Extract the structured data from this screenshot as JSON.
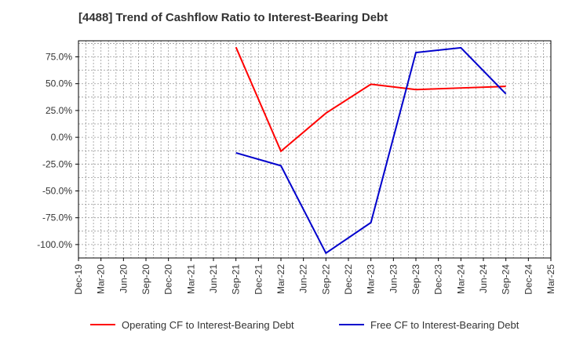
{
  "chart_data": {
    "type": "line",
    "title": "[4488]  Trend of Cashflow Ratio to Interest-Bearing Debt",
    "xlabel": "",
    "ylabel": "",
    "categories": [
      "Dec-19",
      "Mar-20",
      "Jun-20",
      "Sep-20",
      "Dec-20",
      "Mar-21",
      "Jun-21",
      "Sep-21",
      "Dec-21",
      "Mar-22",
      "Jun-22",
      "Sep-22",
      "Dec-22",
      "Mar-23",
      "Jun-23",
      "Sep-23",
      "Dec-23",
      "Mar-24",
      "Jun-24",
      "Sep-24",
      "Dec-24",
      "Mar-25"
    ],
    "ylim": [
      -112.5,
      90
    ],
    "yticks": [
      75,
      50,
      25,
      0,
      -25,
      -50,
      -75,
      -100
    ],
    "ytick_labels": [
      "75.0%",
      "50.0%",
      "25.0%",
      "0.0%",
      "-25.0%",
      "-50.0%",
      "-75.0%",
      "-100.0%"
    ],
    "grid": true,
    "legend_position": "bottom",
    "series": [
      {
        "name": "Operating CF to Interest-Bearing Debt",
        "color": "#ff0000",
        "points": [
          {
            "x": "Sep-21",
            "y": 84.0
          },
          {
            "x": "Mar-22",
            "y": -13.0
          },
          {
            "x": "Sep-22",
            "y": 22.5
          },
          {
            "x": "Mar-23",
            "y": 49.5
          },
          {
            "x": "Sep-23",
            "y": 44.5
          },
          {
            "x": "Mar-24",
            "y": 46.0
          },
          {
            "x": "Sep-24",
            "y": 47.5
          }
        ]
      },
      {
        "name": "Free CF to Interest-Bearing Debt",
        "color": "#0000cc",
        "points": [
          {
            "x": "Sep-21",
            "y": -14.5
          },
          {
            "x": "Mar-22",
            "y": -26.5
          },
          {
            "x": "Sep-22",
            "y": -108.0
          },
          {
            "x": "Mar-23",
            "y": -79.5
          },
          {
            "x": "Sep-23",
            "y": 79.0
          },
          {
            "x": "Mar-24",
            "y": 83.5
          },
          {
            "x": "Sep-24",
            "y": 40.5
          }
        ]
      }
    ]
  }
}
